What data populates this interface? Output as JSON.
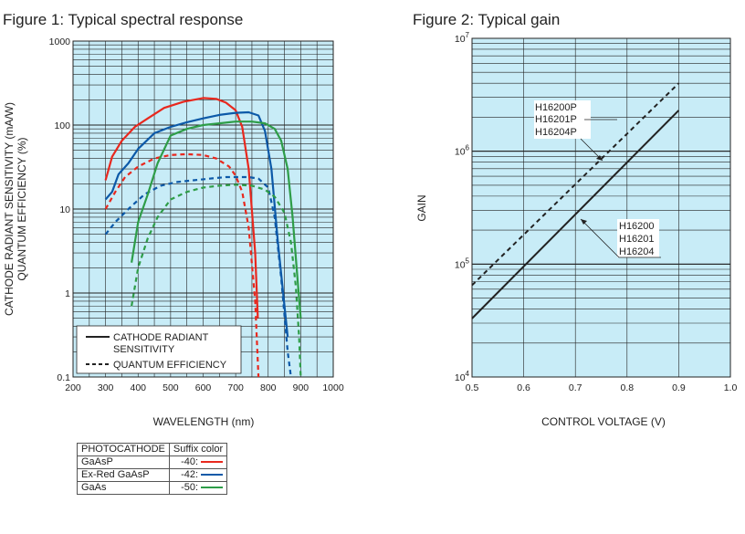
{
  "chart_data": [
    {
      "type": "line",
      "title": "Figure 1: Typical spectral response",
      "xlabel": "WAVELENGTH (nm)",
      "ylabel_lines": [
        "CATHODE RADIANT SENSITIVITY (mA/W)",
        "QUANTUM EFFICIENCY (%)"
      ],
      "x_ticks": [
        "200",
        "300",
        "400",
        "500",
        "600",
        "700",
        "800",
        "900",
        "1000"
      ],
      "y_ticks": [
        "0.1",
        "1",
        "10",
        "100",
        "1000"
      ],
      "xlim": [
        200,
        1000
      ],
      "ylim": [
        0.1,
        1000
      ],
      "yscale": "log",
      "grid": true,
      "legend": {
        "location": "bottom-left",
        "entries": [
          {
            "style": "solid",
            "label_lines": [
              "CATHODE RADIANT",
              "SENSITIVITY"
            ]
          },
          {
            "style": "dashed",
            "label_lines": [
              "QUANTUM EFFICIENCY"
            ]
          }
        ]
      },
      "series": [
        {
          "color": "#e8281e",
          "style": "solid",
          "x": [
            300,
            320,
            350,
            390,
            430,
            480,
            540,
            600,
            640,
            670,
            700,
            720,
            740,
            760,
            768
          ],
          "y": [
            22,
            42,
            65,
            95,
            120,
            160,
            190,
            210,
            205,
            185,
            150,
            95,
            30,
            3,
            0.5
          ]
        },
        {
          "color": "#e8281e",
          "style": "dashed",
          "x": [
            300,
            330,
            360,
            400,
            450,
            500,
            550,
            600,
            640,
            680,
            700,
            720,
            740,
            760,
            770
          ],
          "y": [
            10,
            16,
            24,
            32,
            40,
            44,
            45,
            44,
            40,
            32,
            25,
            16,
            6,
            0.8,
            0.1
          ]
        },
        {
          "color": "#0c59a8",
          "style": "solid",
          "x": [
            300,
            320,
            340,
            370,
            400,
            450,
            500,
            550,
            600,
            650,
            700,
            740,
            770,
            790,
            810,
            830,
            850,
            860
          ],
          "y": [
            13,
            16,
            26,
            35,
            52,
            80,
            95,
            108,
            120,
            132,
            140,
            142,
            130,
            85,
            30,
            4,
            0.7,
            0.3
          ]
        },
        {
          "color": "#0c59a8",
          "style": "dashed",
          "x": [
            300,
            330,
            370,
            420,
            470,
            520,
            570,
            620,
            670,
            700,
            740,
            770,
            800,
            820,
            840,
            860,
            870
          ],
          "y": [
            5,
            7,
            10,
            15,
            19,
            21,
            22,
            23,
            24,
            24,
            24,
            23,
            18,
            8,
            1.5,
            0.2,
            0.1
          ]
        },
        {
          "color": "#2e9d48",
          "style": "solid",
          "x": [
            380,
            400,
            430,
            460,
            500,
            550,
            600,
            650,
            700,
            750,
            790,
            820,
            840,
            860,
            875,
            890,
            900
          ],
          "y": [
            2.3,
            7,
            15,
            35,
            75,
            90,
            100,
            105,
            110,
            110,
            105,
            90,
            65,
            30,
            8,
            1.5,
            0.5
          ]
        },
        {
          "color": "#2e9d48",
          "style": "dashed",
          "x": [
            380,
            400,
            430,
            460,
            500,
            550,
            600,
            650,
            700,
            750,
            790,
            820,
            850,
            870,
            885,
            895,
            900
          ],
          "y": [
            0.7,
            2,
            4.5,
            8,
            13,
            16,
            18,
            19,
            19.5,
            19,
            17,
            14,
            9,
            4,
            1.2,
            0.3,
            0.1
          ]
        }
      ]
    },
    {
      "type": "line",
      "title": "Figure 2: Typical gain",
      "xlabel": "CONTROL VOLTAGE (V)",
      "ylabel": "GAIN",
      "x_ticks": [
        "0.5",
        "0.6",
        "0.7",
        "0.8",
        "0.9",
        "1.0"
      ],
      "y_ticks": [
        {
          "base": "10",
          "exp": "4"
        },
        {
          "base": "10",
          "exp": "5"
        },
        {
          "base": "10",
          "exp": "6"
        },
        {
          "base": "10",
          "exp": "7"
        }
      ],
      "xlim": [
        0.5,
        1.0
      ],
      "ylim": [
        10000,
        10000000
      ],
      "yscale": "log",
      "grid": true,
      "series": [
        {
          "name_lines": [
            "H16200P",
            "H16201P",
            "H16204P"
          ],
          "style": "dashed",
          "color": "#222222",
          "x": [
            0.5,
            0.9
          ],
          "y": [
            65000,
            4000000
          ]
        },
        {
          "name_lines": [
            "H16200",
            "H16201",
            "H16204"
          ],
          "style": "solid",
          "color": "#222222",
          "x": [
            0.5,
            0.9
          ],
          "y": [
            33000,
            2300000
          ]
        }
      ]
    }
  ],
  "photocathode_table": {
    "headers": [
      "PHOTOCATHODE",
      "Suffix color"
    ],
    "rows": [
      {
        "name": "GaAsP",
        "suffix": "-40:",
        "color": "#e8281e"
      },
      {
        "name": "Ex-Red GaAsP",
        "suffix": "-42:",
        "color": "#0c59a8"
      },
      {
        "name": "GaAs",
        "suffix": "-50:",
        "color": "#2e9d48"
      }
    ]
  }
}
